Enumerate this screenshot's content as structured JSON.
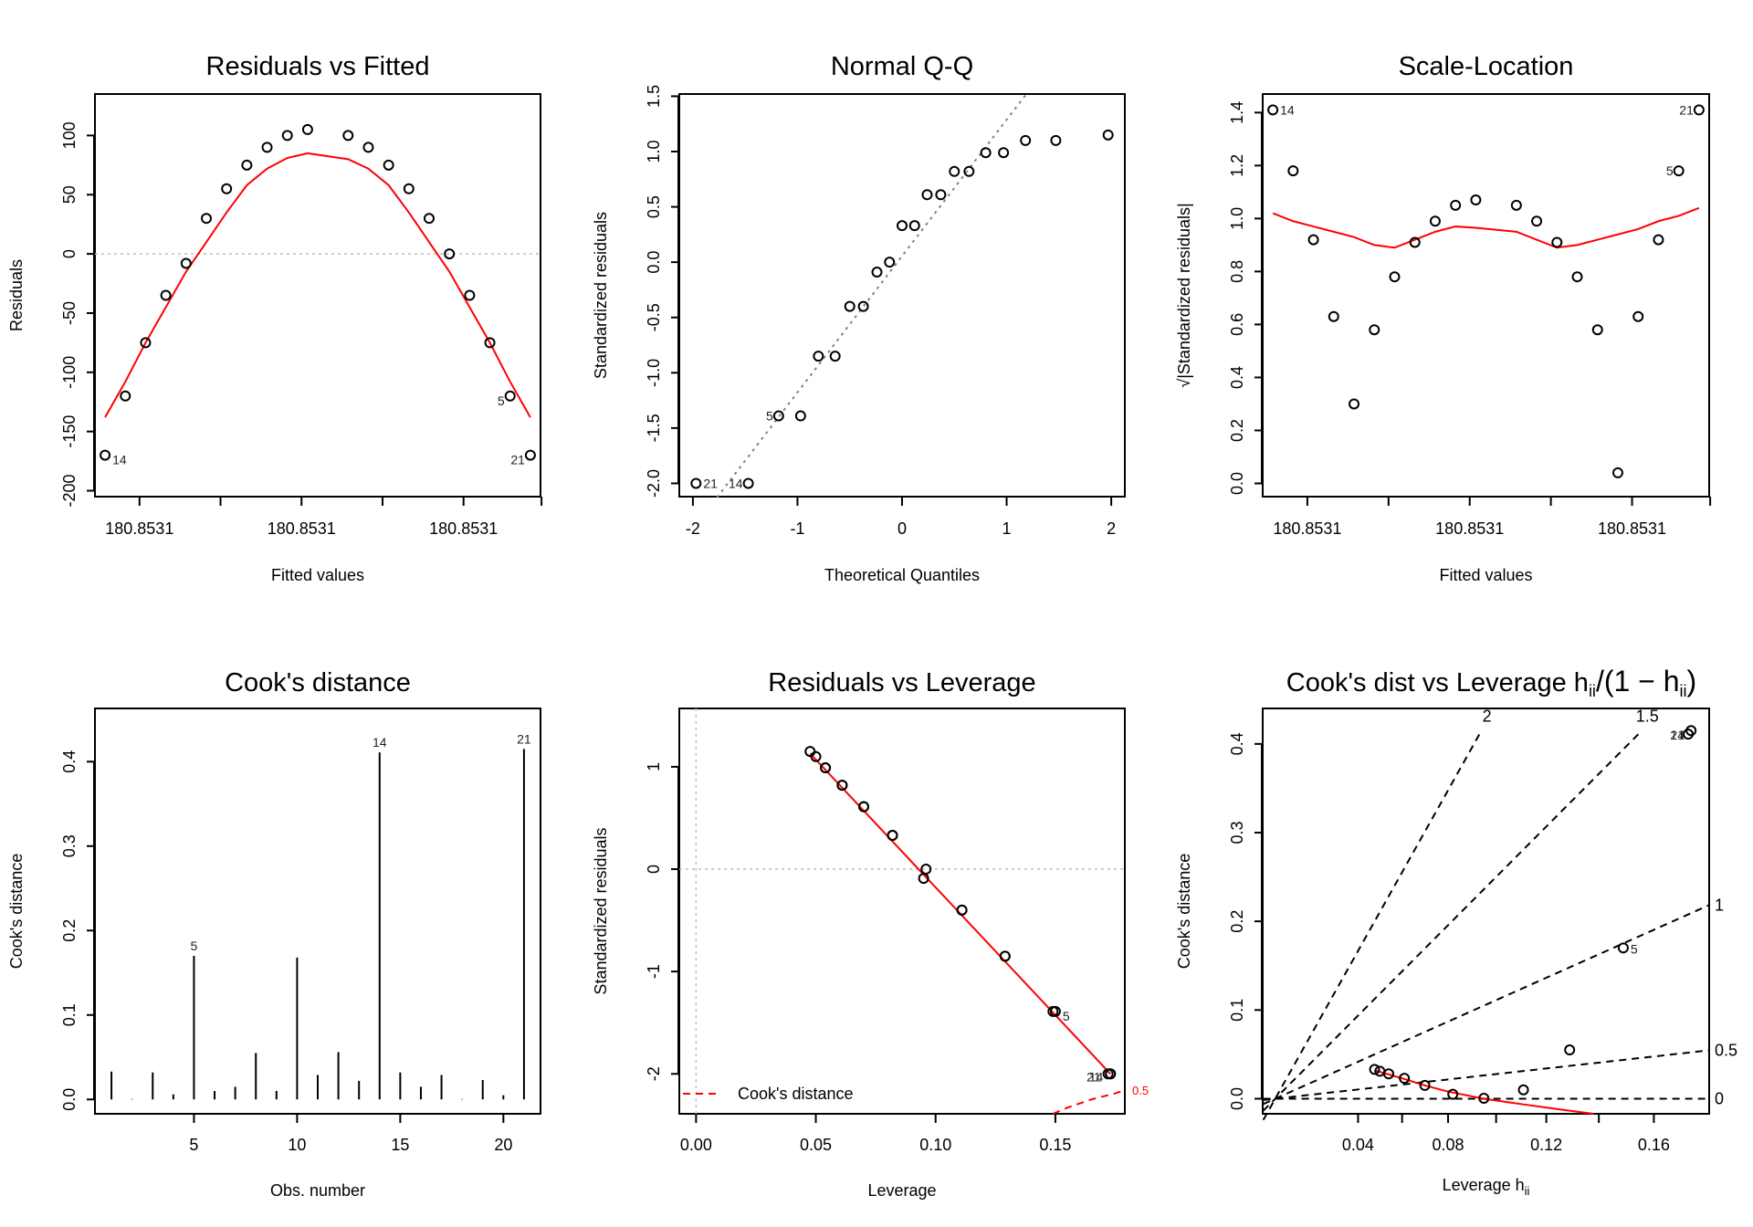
{
  "chart_data": [
    {
      "id": "resid-fitted",
      "type": "scatter",
      "title": "Residuals vs Fitted",
      "xlabel": "Fitted values",
      "ylabel": "Residuals",
      "x_tick_labels": [
        "180.8531",
        "180.8531",
        "180.8531"
      ],
      "x_minor_tick_count": 6,
      "y_ticks": [
        -200,
        -150,
        -100,
        -50,
        0,
        50,
        100
      ],
      "ylim": [
        -205,
        135
      ],
      "xlim_index": [
        0.2,
        20.8
      ],
      "x_index": [
        0.3,
        1.3,
        2.3,
        3.3,
        4.3,
        5.3,
        6.3,
        7.3,
        8.3,
        9.3,
        10.3,
        12.3,
        13.3,
        14.3,
        15.3,
        16.3,
        17.3,
        18.3,
        19.3,
        20.3,
        21.3
      ],
      "residuals": [
        -170,
        -120,
        -75,
        -35,
        -8,
        30,
        55,
        75,
        90,
        100,
        105,
        100,
        90,
        75,
        55,
        30,
        0,
        -35,
        -75,
        -120,
        -170
      ],
      "smooth": [
        -138,
        -108,
        -75,
        -45,
        -15,
        10,
        35,
        58,
        72,
        81,
        85,
        80,
        72,
        58,
        35,
        10,
        -15,
        -45,
        -75,
        -108,
        -138
      ],
      "reference_line": 0,
      "labels": [
        {
          "index": 0,
          "text": "14",
          "pos": "right-below"
        },
        {
          "index": 19,
          "text": "5",
          "pos": "left-below"
        },
        {
          "index": 20,
          "text": "21",
          "pos": "left-below"
        }
      ],
      "colors": {
        "points": "#000000",
        "smooth": "#ff0000",
        "reference": "#bebebe"
      }
    },
    {
      "id": "normal-qq",
      "type": "scatter",
      "title": "Normal Q-Q",
      "xlabel": "Theoretical Quantiles",
      "ylabel": "Standardized residuals",
      "x_ticks": [
        -2,
        -1,
        0,
        1,
        2
      ],
      "y_ticks": [
        -2.0,
        -1.5,
        -1.0,
        -0.5,
        0.0,
        0.5,
        1.0,
        1.5
      ],
      "xlim": [
        -2.13,
        2.13
      ],
      "ylim": [
        -2.12,
        1.52
      ],
      "x": [
        -1.97,
        -1.47,
        -1.18,
        -0.97,
        -0.8,
        -0.64,
        -0.5,
        -0.37,
        -0.24,
        -0.12,
        0.0,
        0.12,
        0.24,
        0.37,
        0.5,
        0.64,
        0.8,
        0.97,
        1.18,
        1.47,
        1.97
      ],
      "y": [
        -2.0,
        -2.0,
        -1.39,
        -1.39,
        -0.85,
        -0.85,
        -0.4,
        -0.4,
        -0.09,
        0.0,
        0.33,
        0.33,
        0.61,
        0.61,
        0.82,
        0.82,
        0.99,
        0.99,
        1.1,
        1.1,
        1.15
      ],
      "qq_line": {
        "slope": 1.233,
        "intercept": 0.055
      },
      "labels": [
        {
          "index": 0,
          "text": "21",
          "pos": "right"
        },
        {
          "index": 1,
          "text": "14",
          "pos": "left"
        },
        {
          "index": 2,
          "text": "5",
          "pos": "left"
        }
      ],
      "colors": {
        "points": "#000000",
        "qq_line": "#808080"
      }
    },
    {
      "id": "scale-location",
      "type": "scatter",
      "title": "Scale-Location",
      "xlabel": "Fitted values",
      "ylabel": "√|Standardized residuals|",
      "x_tick_labels": [
        "180.8531",
        "180.8531",
        "180.8531"
      ],
      "y_ticks": [
        0.0,
        0.2,
        0.4,
        0.6,
        0.8,
        1.0,
        1.2,
        1.4
      ],
      "ylim": [
        -0.05,
        1.47
      ],
      "xlim_index": [
        0.2,
        20.8
      ],
      "x_index": [
        0.3,
        1.3,
        2.3,
        3.3,
        4.3,
        5.3,
        6.3,
        7.3,
        8.3,
        9.3,
        10.3,
        12.3,
        13.3,
        14.3,
        15.3,
        16.3,
        17.3,
        18.3,
        19.3,
        20.3,
        21.3
      ],
      "values": [
        1.41,
        1.18,
        0.92,
        0.63,
        0.3,
        0.58,
        0.78,
        0.91,
        0.99,
        1.05,
        1.07,
        1.05,
        0.99,
        0.91,
        0.78,
        0.58,
        0.04,
        0.63,
        0.92,
        1.18,
        1.41
      ],
      "smooth": [
        1.02,
        0.99,
        0.97,
        0.95,
        0.93,
        0.9,
        0.89,
        0.92,
        0.95,
        0.97,
        0.965,
        0.95,
        0.92,
        0.89,
        0.9,
        0.92,
        0.94,
        0.96,
        0.99,
        1.01,
        1.04
      ],
      "labels": [
        {
          "index": 0,
          "text": "14",
          "pos": "right"
        },
        {
          "index": 19,
          "text": "5",
          "pos": "left"
        },
        {
          "index": 20,
          "text": "21",
          "pos": "left"
        }
      ],
      "colors": {
        "points": "#000000",
        "smooth": "#ff0000"
      }
    },
    {
      "id": "cooks-distance",
      "type": "bar",
      "title": "Cook's distance",
      "xlabel": "Obs. number",
      "ylabel": "Cook's distance",
      "x_ticks": [
        5,
        10,
        15,
        20
      ],
      "y_ticks": [
        0.0,
        0.1,
        0.2,
        0.3,
        0.4
      ],
      "xlim": [
        0.2,
        21.8
      ],
      "ylim": [
        -0.017,
        0.463
      ],
      "categories": [
        1,
        2,
        3,
        4,
        5,
        6,
        7,
        8,
        9,
        10,
        11,
        12,
        13,
        14,
        15,
        16,
        17,
        18,
        19,
        20,
        21
      ],
      "values": [
        0.033,
        0.0005,
        0.032,
        0.006,
        0.17,
        0.01,
        0.015,
        0.055,
        0.01,
        0.168,
        0.029,
        0.056,
        0.022,
        0.411,
        0.032,
        0.015,
        0.029,
        0.0005,
        0.023,
        0.005,
        0.415
      ],
      "labels": [
        {
          "obs": 5,
          "text": "5"
        },
        {
          "obs": 14,
          "text": "14"
        },
        {
          "obs": 21,
          "text": "21"
        }
      ],
      "colors": {
        "bars": "#000000"
      }
    },
    {
      "id": "resid-leverage",
      "type": "scatter",
      "title": "Residuals vs Leverage",
      "xlabel": "Leverage",
      "ylabel": "Standardized residuals",
      "x_ticks": [
        0.0,
        0.05,
        0.1,
        0.15
      ],
      "x_tick_labels": [
        "0.00",
        "0.05",
        "0.10",
        "0.15"
      ],
      "y_ticks": [
        -2,
        -1,
        0,
        1
      ],
      "xlim": [
        -0.007,
        0.179
      ],
      "ylim": [
        -2.39,
        1.57
      ],
      "x": [
        0.0476,
        0.05,
        0.054,
        0.061,
        0.07,
        0.082,
        0.095,
        0.096,
        0.111,
        0.129,
        0.149,
        0.15,
        0.172,
        0.173,
        0.082,
        0.07,
        0.061,
        0.054,
        0.111,
        0.129,
        0.173
      ],
      "y": [
        1.15,
        1.1,
        0.99,
        0.82,
        0.61,
        0.33,
        -0.09,
        0.0,
        -0.4,
        -0.85,
        -1.39,
        -1.39,
        -2.0,
        -2.0,
        0.33,
        0.61,
        0.82,
        0.99,
        -0.4,
        -0.85,
        -2.0
      ],
      "smooth": {
        "x": [
          0.0476,
          0.173
        ],
        "y": [
          1.13,
          -2.0
        ]
      },
      "cooks_contour": {
        "level": 0.5,
        "label": "0.5",
        "x": [
          0.149,
          0.155,
          0.16,
          0.165,
          0.17,
          0.175,
          0.179
        ],
        "y": [
          -2.39,
          -2.33,
          -2.29,
          -2.25,
          -2.22,
          -2.19,
          -2.16
        ]
      },
      "legend": {
        "label": "Cook's distance",
        "placement": "bottom-left"
      },
      "labels": [
        {
          "text": "5",
          "x": 0.15,
          "y": -1.39
        },
        {
          "text": "21",
          "x": 0.166,
          "y": -2.02
        },
        {
          "text": "14",
          "x": 0.166,
          "y": -2.02
        }
      ],
      "reference_lines": {
        "h": 0,
        "v": 0
      },
      "colors": {
        "points": "#000000",
        "smooth": "#ff0000",
        "contour": "#ff0000",
        "reference": "#bebebe"
      }
    },
    {
      "id": "cooks-vs-leverage",
      "type": "scatter",
      "title": "Cook's dist vs Leverage",
      "title_math": "h_ii / (1 - h_ii)",
      "xlabel": "Leverage",
      "xlabel_math": "h_ii",
      "ylabel": "Cook's distance",
      "x_ticks_leverage": [
        0.04,
        0.08,
        0.12,
        0.16
      ],
      "x_tick_labels": [
        "0.04",
        "0.08",
        "0.12",
        "0.16"
      ],
      "x_minor_leverage": [
        0.06,
        0.1,
        0.14
      ],
      "y_ticks": [
        0.0,
        0.1,
        0.2,
        0.3,
        0.4
      ],
      "xlim_ratio": [
        -0.0063,
        0.2183
      ],
      "ylim": [
        -0.017,
        0.44
      ],
      "leverage": [
        0.0476,
        0.05,
        0.054,
        0.061,
        0.07,
        0.082,
        0.095,
        0.111,
        0.129,
        0.149,
        0.172,
        0.173
      ],
      "cooks": [
        0.033,
        0.031,
        0.028,
        0.023,
        0.015,
        0.005,
        0.0005,
        0.01,
        0.055,
        0.17,
        0.411,
        0.415
      ],
      "smooth": {
        "leverage": [
          0.0476,
          0.06,
          0.07,
          0.08,
          0.095,
          0.11,
          0.125,
          0.138
        ],
        "cooks": [
          0.032,
          0.023,
          0.015,
          0.008,
          0.0,
          -0.006,
          -0.012,
          -0.017
        ]
      },
      "contours": [
        {
          "label": "0",
          "slope": 0.0
        },
        {
          "label": "0.5",
          "slope": 0.25
        },
        {
          "label": "1",
          "slope": 1.0
        },
        {
          "label": "1.5",
          "slope": 2.25
        },
        {
          "label": "2",
          "slope": 4.0
        }
      ],
      "labels": [
        {
          "text": "5",
          "leverage": 0.149,
          "cooks": 0.17
        },
        {
          "text": "21",
          "leverage": 0.172,
          "cooks": 0.411
        },
        {
          "text": "14",
          "leverage": 0.172,
          "cooks": 0.411
        }
      ],
      "colors": {
        "points": "#000000",
        "smooth": "#ff0000",
        "contours": "#000000"
      }
    }
  ]
}
